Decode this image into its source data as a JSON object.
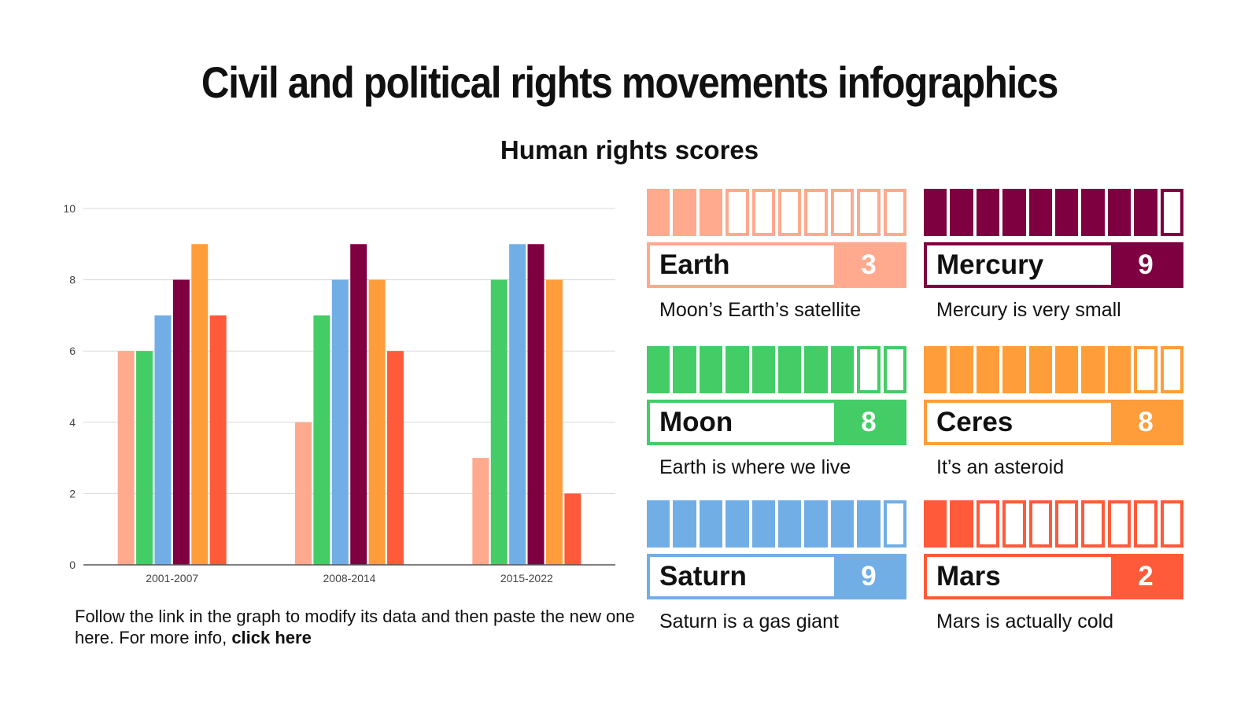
{
  "title": "Civil and political rights movements infographics",
  "subtitle": "Human rights scores",
  "note": {
    "text": "Follow the link in the graph to modify its data and then paste the new one here. For more info, ",
    "link": "click here"
  },
  "chart_data": {
    "type": "bar",
    "categories": [
      "2001-2007",
      "2008-2014",
      "2015-2022"
    ],
    "ylim": [
      0,
      10
    ],
    "yticks": [
      0,
      2,
      4,
      6,
      8,
      10
    ],
    "grid": true,
    "series": [
      {
        "color": "#FFA98E",
        "values": [
          6,
          4,
          3
        ]
      },
      {
        "color": "#44CC66",
        "values": [
          6,
          7,
          8
        ]
      },
      {
        "color": "#72AEE6",
        "values": [
          7,
          8,
          9
        ]
      },
      {
        "color": "#7E0040",
        "values": [
          8,
          9,
          9
        ]
      },
      {
        "color": "#FF9D3B",
        "values": [
          9,
          8,
          8
        ]
      },
      {
        "color": "#FF5A3A",
        "values": [
          7,
          6,
          2
        ]
      }
    ]
  },
  "cards": [
    {
      "name": "Earth",
      "score": 3,
      "max": 10,
      "color": "#FFA98E",
      "description": "Moon’s Earth’s satellite"
    },
    {
      "name": "Mercury",
      "score": 9,
      "max": 10,
      "color": "#7E0040",
      "description": "Mercury is very small"
    },
    {
      "name": "Moon",
      "score": 8,
      "max": 10,
      "color": "#44CC66",
      "description": "Earth is where we live"
    },
    {
      "name": "Ceres",
      "score": 8,
      "max": 10,
      "color": "#FF9D3B",
      "description": "It’s an asteroid"
    },
    {
      "name": "Saturn",
      "score": 9,
      "max": 10,
      "color": "#72AEE6",
      "description": "Saturn is a gas giant"
    },
    {
      "name": "Mars",
      "score": 2,
      "max": 10,
      "color": "#FF5A3A",
      "description": "Mars is actually cold"
    }
  ]
}
